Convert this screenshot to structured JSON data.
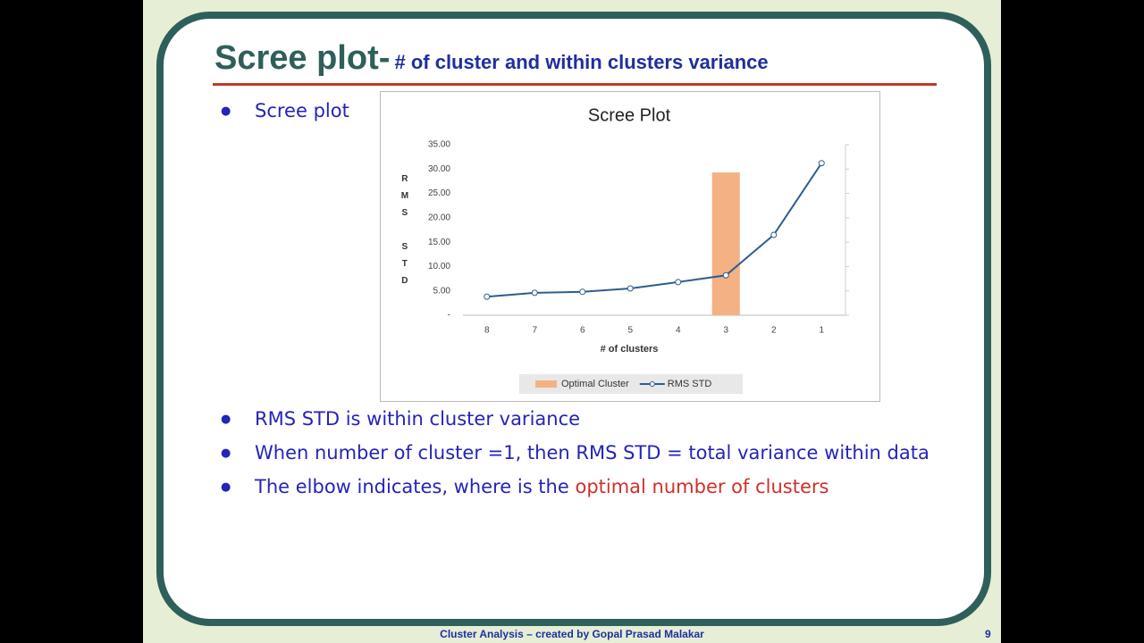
{
  "slide": {
    "title": "Scree plot-",
    "subtitle": "# of cluster and within clusters variance",
    "bullets": [
      "Scree plot",
      "RMS STD is within cluster variance",
      "When number of cluster =1, then RMS STD = total variance within data"
    ],
    "elbow_bullet": {
      "text": "The elbow indicates, where is the",
      "highlight": "optimal number of clusters"
    },
    "footer": {
      "text": "Cluster Analysis – created by Gopal Prasad Malakar",
      "page": 9
    }
  },
  "chart_data": {
    "type": "combo",
    "title": "Scree Plot",
    "x_label": "# of clusters",
    "y_label": "RMS STD",
    "categories": [
      "8",
      "7",
      "6",
      "5",
      "4",
      "3",
      "2",
      "1"
    ],
    "series": [
      {
        "name": "Optimal Cluster",
        "type": "bar",
        "color": "#f4b183",
        "values": [
          null,
          null,
          null,
          null,
          null,
          29.3,
          null,
          null
        ]
      },
      {
        "name": "RMS STD",
        "type": "line",
        "color": "#2e5d8e",
        "values": [
          3.8,
          4.6,
          4.8,
          5.5,
          6.8,
          8.2,
          16.5,
          31.2
        ]
      }
    ],
    "ylim": [
      0,
      35
    ],
    "yticks": [
      {
        "value": 0,
        "label": "-"
      },
      {
        "value": 5,
        "label": "5.00"
      },
      {
        "value": 10,
        "label": "10.00"
      },
      {
        "value": 15,
        "label": "15.00"
      },
      {
        "value": 20,
        "label": "20.00"
      },
      {
        "value": 25,
        "label": "25.00"
      },
      {
        "value": 30,
        "label": "30.00"
      },
      {
        "value": 35,
        "label": "35.00"
      }
    ],
    "grid": false,
    "legend": "bottom"
  }
}
